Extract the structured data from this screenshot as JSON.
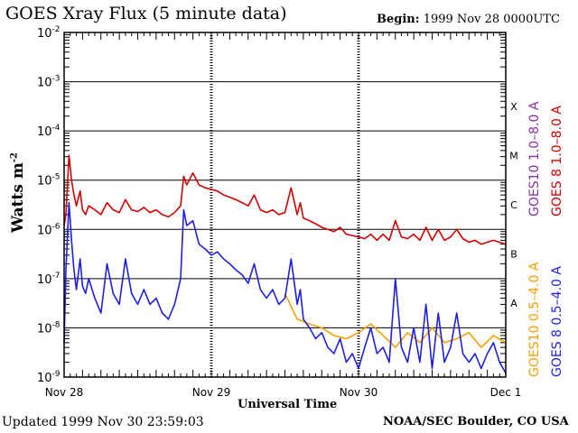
{
  "header": {
    "title": "GOES Xray Flux (5 minute data)",
    "begin_label": "Begin:",
    "begin_value": "1999 Nov 28 0000UTC"
  },
  "footer": {
    "updated": "Updated 1999 Nov 30 23:59:03",
    "credit": "NOAA/SEC Boulder, CO USA"
  },
  "chart_data": {
    "type": "line",
    "title": "GOES Xray Flux (5 minute data)",
    "xlabel": "Universal Time",
    "ylabel": "Watts m",
    "ylabel_sup": "-2",
    "yscale": "log",
    "ylim": [
      1e-09,
      0.01
    ],
    "y_ticks": [
      {
        "base": "10",
        "exp": "-2"
      },
      {
        "base": "10",
        "exp": "-3"
      },
      {
        "base": "10",
        "exp": "-4"
      },
      {
        "base": "10",
        "exp": "-5"
      },
      {
        "base": "10",
        "exp": "-6"
      },
      {
        "base": "10",
        "exp": "-7"
      },
      {
        "base": "10",
        "exp": "-8"
      },
      {
        "base": "10",
        "exp": "-9"
      }
    ],
    "xlim": [
      0,
      72
    ],
    "x_unit": "hours since 1999 Nov 28 0000UTC",
    "x_ticks": [
      {
        "hour": 0,
        "label": "Nov 28"
      },
      {
        "hour": 24,
        "label": "Nov 29"
      },
      {
        "hour": 48,
        "label": "Nov 30"
      },
      {
        "hour": 72,
        "label": "Dec 1"
      }
    ],
    "flare_classes": [
      {
        "label": "X",
        "level": 0.0001
      },
      {
        "label": "M",
        "level": 1e-05
      },
      {
        "label": "C",
        "level": 1e-06
      },
      {
        "label": "B",
        "level": 1e-07
      },
      {
        "label": "A",
        "level": 1e-08
      }
    ],
    "legend": {
      "right_top": [
        {
          "text": "GOES 8 1.0–8.0 A",
          "color": "#d40000"
        },
        {
          "text": "GOES10 1.0–8.0 A",
          "color": "#8b2fa8"
        }
      ],
      "right_bottom": [
        {
          "text": "GOES 8 0.5–4.0 A",
          "color": "#1e1ee6"
        },
        {
          "text": "GOES10 0.5–4.0 A",
          "color": "#f5a000"
        }
      ]
    },
    "series": [
      {
        "name": "GOES 8 1.0-8.0 A",
        "color": "#d40000",
        "x": [
          0,
          0.3,
          0.8,
          1.2,
          1.6,
          2.0,
          2.6,
          3.0,
          3.5,
          4.0,
          5.0,
          6.0,
          7.0,
          8.0,
          9.0,
          10.0,
          11.0,
          12.0,
          13.0,
          14.0,
          15.0,
          16.0,
          17.0,
          18.0,
          19.0,
          19.5,
          20.0,
          21.0,
          22.0,
          23.0,
          24.0,
          25.0,
          26.0,
          27.0,
          28.0,
          29.0,
          30.0,
          31.0,
          32.0,
          33.0,
          34.0,
          35.0,
          36.0,
          37.0,
          38.0,
          38.5,
          39.0,
          40.0,
          41.0,
          42.0,
          43.0,
          44.0,
          45.0,
          46.0,
          47.0,
          48.0,
          49.0,
          50.0,
          51.0,
          52.0,
          53.0,
          54.0,
          55.0,
          56.0,
          57.0,
          58.0,
          59.0,
          60.0,
          61.0,
          62.0,
          63.0,
          64.0,
          65.0,
          66.0,
          67.0,
          68.0,
          69.0,
          70.0,
          71.0,
          72.0
        ],
        "y": [
          1.2e-06,
          2e-06,
          3.2e-05,
          1e-05,
          5e-06,
          3e-06,
          6e-06,
          2.5e-06,
          2e-06,
          3e-06,
          2.5e-06,
          2e-06,
          3.5e-06,
          2.5e-06,
          2.2e-06,
          4e-06,
          2.5e-06,
          2.3e-06,
          2.8e-06,
          2.2e-06,
          2.5e-06,
          2e-06,
          1.8e-06,
          2.2e-06,
          3e-06,
          1.2e-05,
          8e-06,
          1.4e-05,
          8e-06,
          7e-06,
          6.5e-06,
          6e-06,
          5e-06,
          4.5e-06,
          4e-06,
          3.5e-06,
          3e-06,
          5e-06,
          2.5e-06,
          2.2e-06,
          2.5e-06,
          2e-06,
          2.2e-06,
          7e-06,
          2e-06,
          3.5e-06,
          1.7e-06,
          1.5e-06,
          1.3e-06,
          1.1e-06,
          1e-06,
          9e-07,
          1.1e-06,
          8e-07,
          7.5e-07,
          7e-07,
          6.5e-07,
          8e-07,
          6e-07,
          8e-07,
          6e-07,
          1.5e-06,
          7e-07,
          6.5e-07,
          8e-07,
          6e-07,
          1.1e-06,
          6e-07,
          1e-06,
          6e-07,
          7e-07,
          1e-06,
          6.5e-07,
          5.5e-07,
          6e-07,
          5e-07,
          5.5e-07,
          6e-07,
          5.5e-07,
          5e-07
        ]
      },
      {
        "name": "GOES 8 0.5-4.0 A",
        "color": "#1e1ee6",
        "x": [
          0,
          0.3,
          0.8,
          1.2,
          1.6,
          2.0,
          2.6,
          3.0,
          3.5,
          4.0,
          5.0,
          6.0,
          7.0,
          8.0,
          9.0,
          10.0,
          11.0,
          12.0,
          13.0,
          14.0,
          15.0,
          16.0,
          17.0,
          18.0,
          19.0,
          19.5,
          20.0,
          21.0,
          22.0,
          23.0,
          24.0,
          25.0,
          26.0,
          27.0,
          28.0,
          29.0,
          30.0,
          31.0,
          32.0,
          33.0,
          34.0,
          35.0,
          36.0,
          37.0,
          38.0,
          38.5,
          39.0,
          40.0,
          41.0,
          42.0,
          43.0,
          44.0,
          45.0,
          46.0,
          47.0,
          48.0,
          49.0,
          50.0,
          51.0,
          52.0,
          53.0,
          54.0,
          55.0,
          56.0,
          57.0,
          58.0,
          59.0,
          60.0,
          61.0,
          62.0,
          63.0,
          64.0,
          65.0,
          66.0,
          67.0,
          68.0,
          69.0,
          70.0,
          71.0,
          72.0
        ],
        "y": [
          5e-09,
          1.5e-07,
          3.5e-06,
          6e-07,
          1.5e-07,
          6e-08,
          2.5e-07,
          7e-08,
          5e-08,
          1e-07,
          4e-08,
          2e-08,
          2e-07,
          5e-08,
          3e-08,
          2.5e-07,
          5e-08,
          3e-08,
          6e-08,
          3e-08,
          4e-08,
          2e-08,
          1.5e-08,
          3e-08,
          1e-07,
          2.5e-06,
          1.2e-06,
          1.5e-06,
          5e-07,
          4e-07,
          3e-07,
          3.5e-07,
          2.5e-07,
          2e-07,
          1.5e-07,
          1.2e-07,
          8e-08,
          2e-07,
          6e-08,
          4e-08,
          6e-08,
          3e-08,
          4e-08,
          2.5e-07,
          3e-08,
          6e-08,
          1.5e-08,
          1e-08,
          6e-09,
          8e-09,
          4e-09,
          3e-09,
          6e-09,
          2e-09,
          3e-09,
          1.5e-09,
          4e-09,
          1e-08,
          3e-09,
          4e-09,
          2e-09,
          1e-07,
          4e-09,
          2e-09,
          1e-08,
          2e-09,
          3e-08,
          1.5e-09,
          2e-08,
          2e-09,
          4e-09,
          2e-08,
          3e-09,
          2e-09,
          3e-09,
          1.5e-09,
          3e-09,
          5e-09,
          2e-09,
          1.2e-09
        ]
      },
      {
        "name": "GOES10 0.5-4.0 A",
        "color": "#f5a000",
        "x": [
          36.0,
          38.0,
          40.0,
          42.0,
          44.0,
          46.0,
          48.0,
          50.0,
          52.0,
          54.0,
          56.0,
          58.0,
          60.0,
          62.0,
          64.0,
          66.0,
          68.0,
          70.0,
          72.0
        ],
        "y": [
          5e-08,
          1.5e-08,
          1.2e-08,
          1e-08,
          7e-09,
          6e-09,
          8e-09,
          1.2e-08,
          7e-09,
          4e-09,
          8e-09,
          5e-09,
          1e-08,
          5e-09,
          6e-09,
          8e-09,
          4e-09,
          7e-09,
          5e-09
        ]
      }
    ]
  }
}
